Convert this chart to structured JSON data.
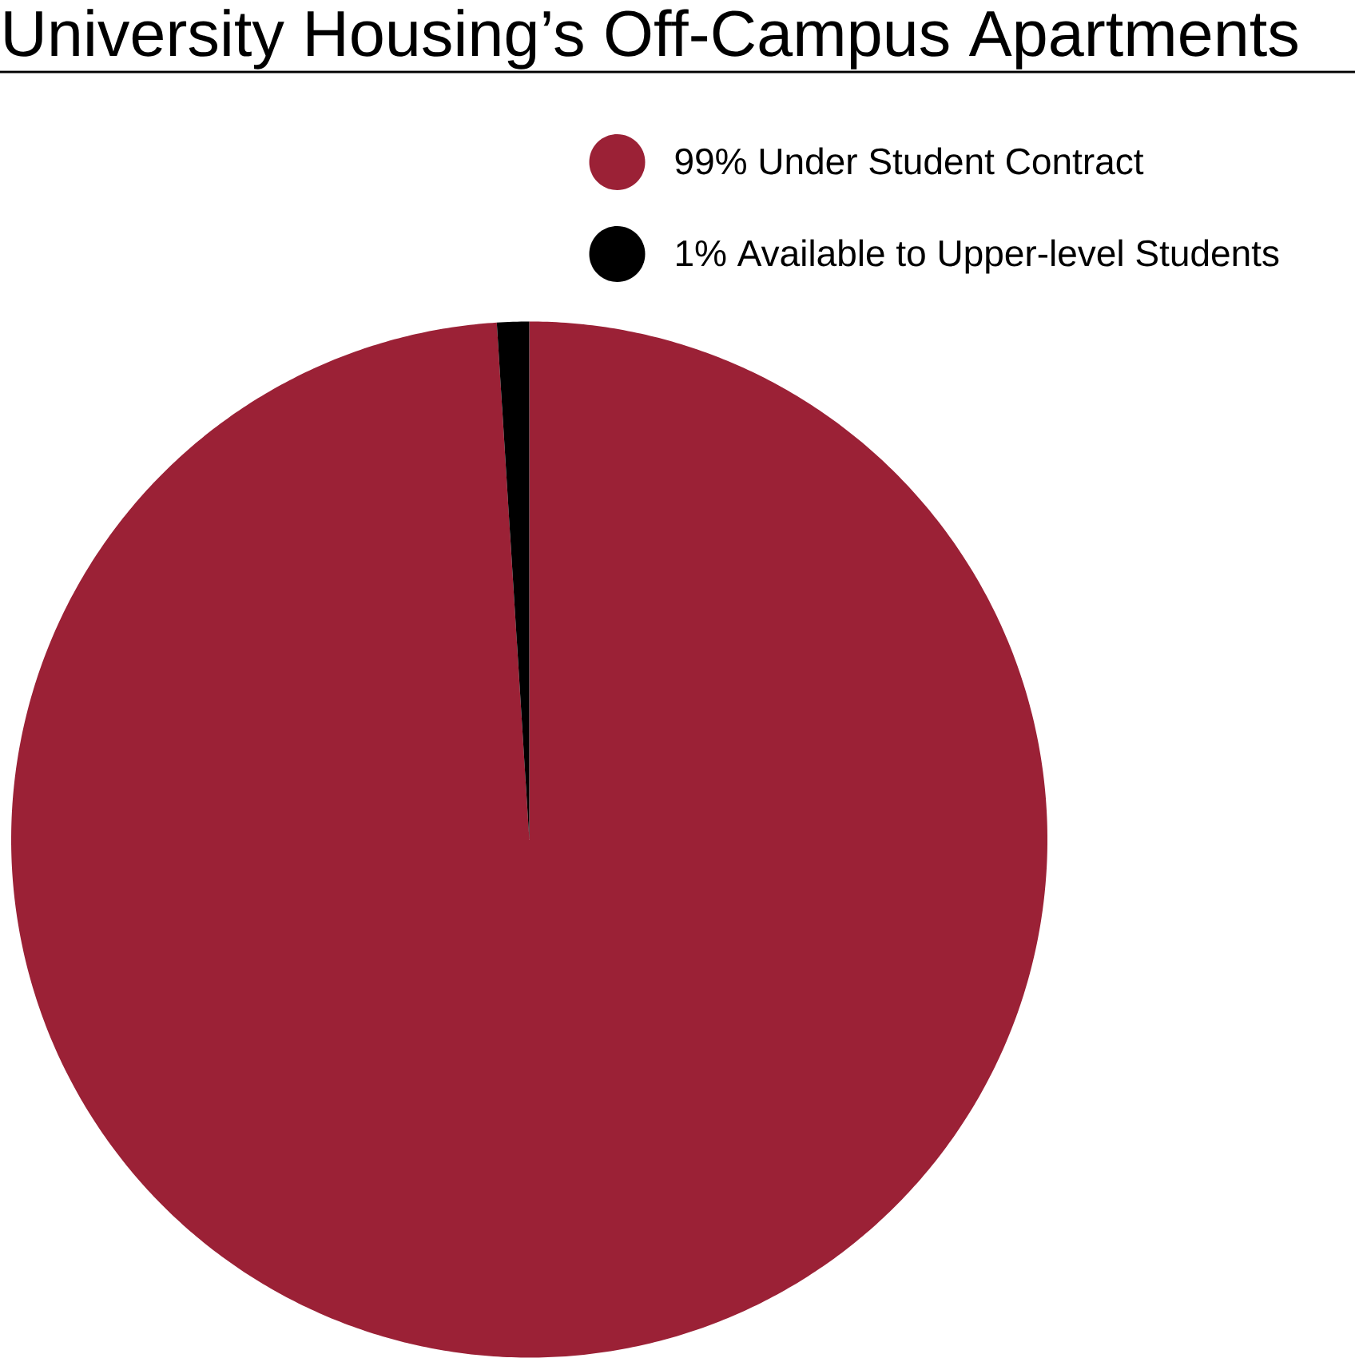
{
  "chart_data": {
    "type": "pie",
    "title": "University Housing’s Off-Campus Apartments",
    "categories": [
      "99% Under Student Contract",
      "1% Available to Upper-level Students"
    ],
    "values": [
      99,
      1
    ],
    "colors": [
      "#9b2136",
      "#000000"
    ],
    "legend": "top right"
  }
}
